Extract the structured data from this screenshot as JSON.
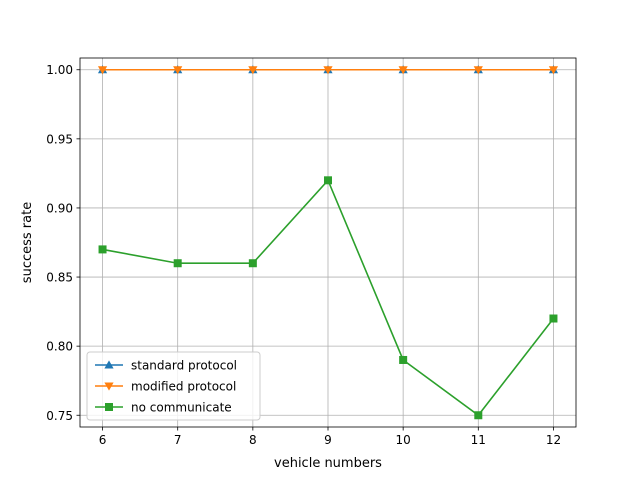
{
  "chart_data": {
    "type": "line",
    "xlabel": "vehicle numbers",
    "ylabel": "success rate",
    "x": [
      6,
      7,
      8,
      9,
      10,
      11,
      12
    ],
    "xlim": [
      5.7,
      12.3
    ],
    "ylim": [
      0.7415,
      1.0085
    ],
    "xticks": [
      6,
      7,
      8,
      9,
      10,
      11,
      12
    ],
    "yticks": [
      0.75,
      0.8,
      0.85,
      0.9,
      0.95,
      1.0
    ],
    "ytick_labels": [
      "0.75",
      "0.80",
      "0.85",
      "0.90",
      "0.95",
      "1.00"
    ],
    "grid": true,
    "legend_position": "lower-left",
    "series": [
      {
        "name": "standard protocol",
        "marker": "triangle-up",
        "color": "#1f77b4",
        "values": [
          1.0,
          1.0,
          1.0,
          1.0,
          1.0,
          1.0,
          1.0
        ]
      },
      {
        "name": "modified protocol",
        "marker": "triangle-down",
        "color": "#ff7f0e",
        "values": [
          1.0,
          1.0,
          1.0,
          1.0,
          1.0,
          1.0,
          1.0
        ]
      },
      {
        "name": "no communicate",
        "marker": "square",
        "color": "#2ca02c",
        "values": [
          0.87,
          0.86,
          0.86,
          0.92,
          0.79,
          0.75,
          0.82
        ]
      }
    ]
  }
}
